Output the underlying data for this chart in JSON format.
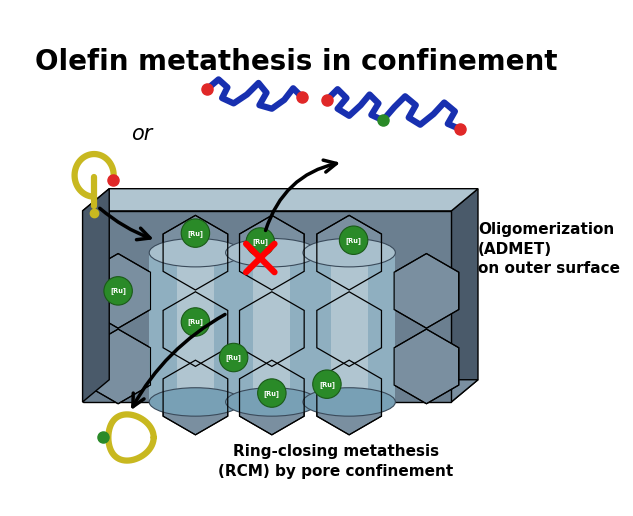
{
  "title": "Olefin metathesis in confinement",
  "title_fontsize": 20,
  "title_fontweight": "bold",
  "label_oligomerization": "Oligomerization\n(ADMET)\non outer surface",
  "label_rcm": "Ring-closing metathesis\n(RCM) by pore confinement",
  "label_or": "or",
  "label_ru": "[Ru]",
  "cof_base": "#6b7f90",
  "cof_dark": "#4a5a6a",
  "cof_mid": "#7a8fa0",
  "cof_light": "#9ab0be",
  "cof_lighter": "#b0c5d0",
  "cof_inner_top": "#a8bfcc",
  "cof_inner_wall": "#8fafc0",
  "cof_inner_bottom": "#78a0b5",
  "green_catalyst": "#2a8a28",
  "polymer_blue": "#1830b0",
  "polymer_yellow": "#c8b820",
  "red_dot": "#e02828",
  "green_dot": "#2a8a28",
  "bg_color": "#ffffff",
  "text_color": "#000000"
}
